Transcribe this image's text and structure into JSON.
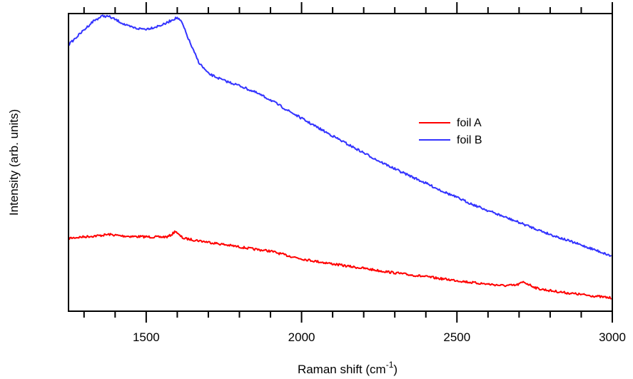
{
  "chart_data": {
    "type": "line",
    "title": "",
    "xlabel": "Raman shift (cm",
    "xlabel_sup": "-1",
    "xlabel_close": ")",
    "ylabel": "Intensity (arb. units)",
    "xlim": [
      1250,
      3000
    ],
    "ylim": [
      0,
      100
    ],
    "y_ticks_shown": false,
    "grid": false,
    "mirror_top_axis": true,
    "legend_position": "upper-center-right",
    "x_major_ticks": [
      1500,
      2000,
      2500,
      3000
    ],
    "x_tick_labels": [
      "1500",
      "2000",
      "2500",
      "3000"
    ],
    "x_minor_step": 100,
    "series": [
      {
        "name": "foil A",
        "color": "#ff0000",
        "points": [
          [
            1250,
            24.5
          ],
          [
            1300,
            25.0
          ],
          [
            1350,
            25.4
          ],
          [
            1380,
            25.8
          ],
          [
            1420,
            25.3
          ],
          [
            1460,
            25.1
          ],
          [
            1500,
            25.0
          ],
          [
            1540,
            24.9
          ],
          [
            1570,
            25.0
          ],
          [
            1585,
            26.0
          ],
          [
            1595,
            27.0
          ],
          [
            1605,
            25.6
          ],
          [
            1620,
            24.5
          ],
          [
            1650,
            24.0
          ],
          [
            1700,
            23.2
          ],
          [
            1750,
            22.4
          ],
          [
            1800,
            21.6
          ],
          [
            1850,
            20.8
          ],
          [
            1900,
            20.2
          ],
          [
            1950,
            18.8
          ],
          [
            2000,
            17.6
          ],
          [
            2050,
            16.7
          ],
          [
            2100,
            15.9
          ],
          [
            2150,
            15.1
          ],
          [
            2200,
            14.4
          ],
          [
            2250,
            13.6
          ],
          [
            2300,
            12.9
          ],
          [
            2350,
            12.2
          ],
          [
            2400,
            11.6
          ],
          [
            2450,
            10.9
          ],
          [
            2500,
            10.3
          ],
          [
            2550,
            9.6
          ],
          [
            2600,
            9.1
          ],
          [
            2650,
            8.6
          ],
          [
            2690,
            8.7
          ],
          [
            2715,
            9.8
          ],
          [
            2735,
            8.8
          ],
          [
            2760,
            7.6
          ],
          [
            2800,
            6.9
          ],
          [
            2850,
            6.2
          ],
          [
            2900,
            5.6
          ],
          [
            2950,
            5.0
          ],
          [
            3000,
            4.4
          ]
        ]
      },
      {
        "name": "foil B",
        "color": "#3333ff",
        "points": [
          [
            1250,
            89.5
          ],
          [
            1270,
            91.5
          ],
          [
            1300,
            94.5
          ],
          [
            1330,
            97.5
          ],
          [
            1360,
            99.2
          ],
          [
            1380,
            99.0
          ],
          [
            1410,
            97.5
          ],
          [
            1440,
            95.8
          ],
          [
            1470,
            95.0
          ],
          [
            1500,
            94.8
          ],
          [
            1530,
            95.5
          ],
          [
            1560,
            96.5
          ],
          [
            1585,
            98.0
          ],
          [
            1600,
            98.6
          ],
          [
            1615,
            97.0
          ],
          [
            1630,
            93.0
          ],
          [
            1650,
            88.0
          ],
          [
            1670,
            83.5
          ],
          [
            1700,
            79.8
          ],
          [
            1750,
            77.5
          ],
          [
            1800,
            75.8
          ],
          [
            1850,
            73.6
          ],
          [
            1900,
            71.0
          ],
          [
            1950,
            67.8
          ],
          [
            2000,
            64.8
          ],
          [
            2050,
            61.8
          ],
          [
            2100,
            58.9
          ],
          [
            2150,
            56.0
          ],
          [
            2200,
            53.2
          ],
          [
            2250,
            50.4
          ],
          [
            2300,
            47.8
          ],
          [
            2350,
            45.4
          ],
          [
            2400,
            43.0
          ],
          [
            2450,
            40.5
          ],
          [
            2500,
            38.2
          ],
          [
            2550,
            35.9
          ],
          [
            2600,
            33.8
          ],
          [
            2650,
            31.8
          ],
          [
            2700,
            29.8
          ],
          [
            2750,
            27.8
          ],
          [
            2800,
            25.8
          ],
          [
            2850,
            24.0
          ],
          [
            2900,
            22.2
          ],
          [
            2950,
            20.4
          ],
          [
            3000,
            18.4
          ]
        ]
      }
    ]
  }
}
